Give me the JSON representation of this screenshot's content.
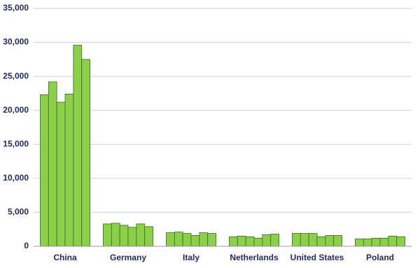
{
  "chart_data": {
    "type": "bar",
    "categories": [
      "China",
      "Germany",
      "Italy",
      "Netherlands",
      "United States",
      "Poland"
    ],
    "series": [
      {
        "color": "#8cd04a",
        "values": [
          22300,
          3300,
          2000,
          1400,
          1900,
          1100
        ]
      },
      {
        "color": "#8cd04a",
        "values": [
          24200,
          3400,
          2100,
          1500,
          1900,
          1100
        ]
      },
      {
        "color": "#8cd04a",
        "values": [
          21200,
          3100,
          1900,
          1400,
          1900,
          1200
        ]
      },
      {
        "color": "#8cd04a",
        "values": [
          22400,
          2800,
          1600,
          1200,
          1400,
          1200
        ]
      },
      {
        "color": "#8cd04a",
        "values": [
          29600,
          3300,
          2000,
          1700,
          1600,
          1500
        ]
      },
      {
        "color": "#8cd04a",
        "values": [
          27500,
          2900,
          1900,
          1800,
          1600,
          1400
        ]
      }
    ],
    "ylim": [
      0,
      35000
    ],
    "yticks": [
      0,
      {
        "value": 5000,
        "label": "5,000"
      },
      {
        "value": 10000,
        "label": "10,000"
      },
      {
        "value": 15000,
        "label": "15,000"
      },
      {
        "value": 20000,
        "label": "20,000"
      },
      {
        "value": 25000,
        "label": "25,000"
      },
      {
        "value": 30000,
        "label": "30,000"
      },
      {
        "value": 35000,
        "label": "35,000"
      }
    ],
    "grid": true
  }
}
